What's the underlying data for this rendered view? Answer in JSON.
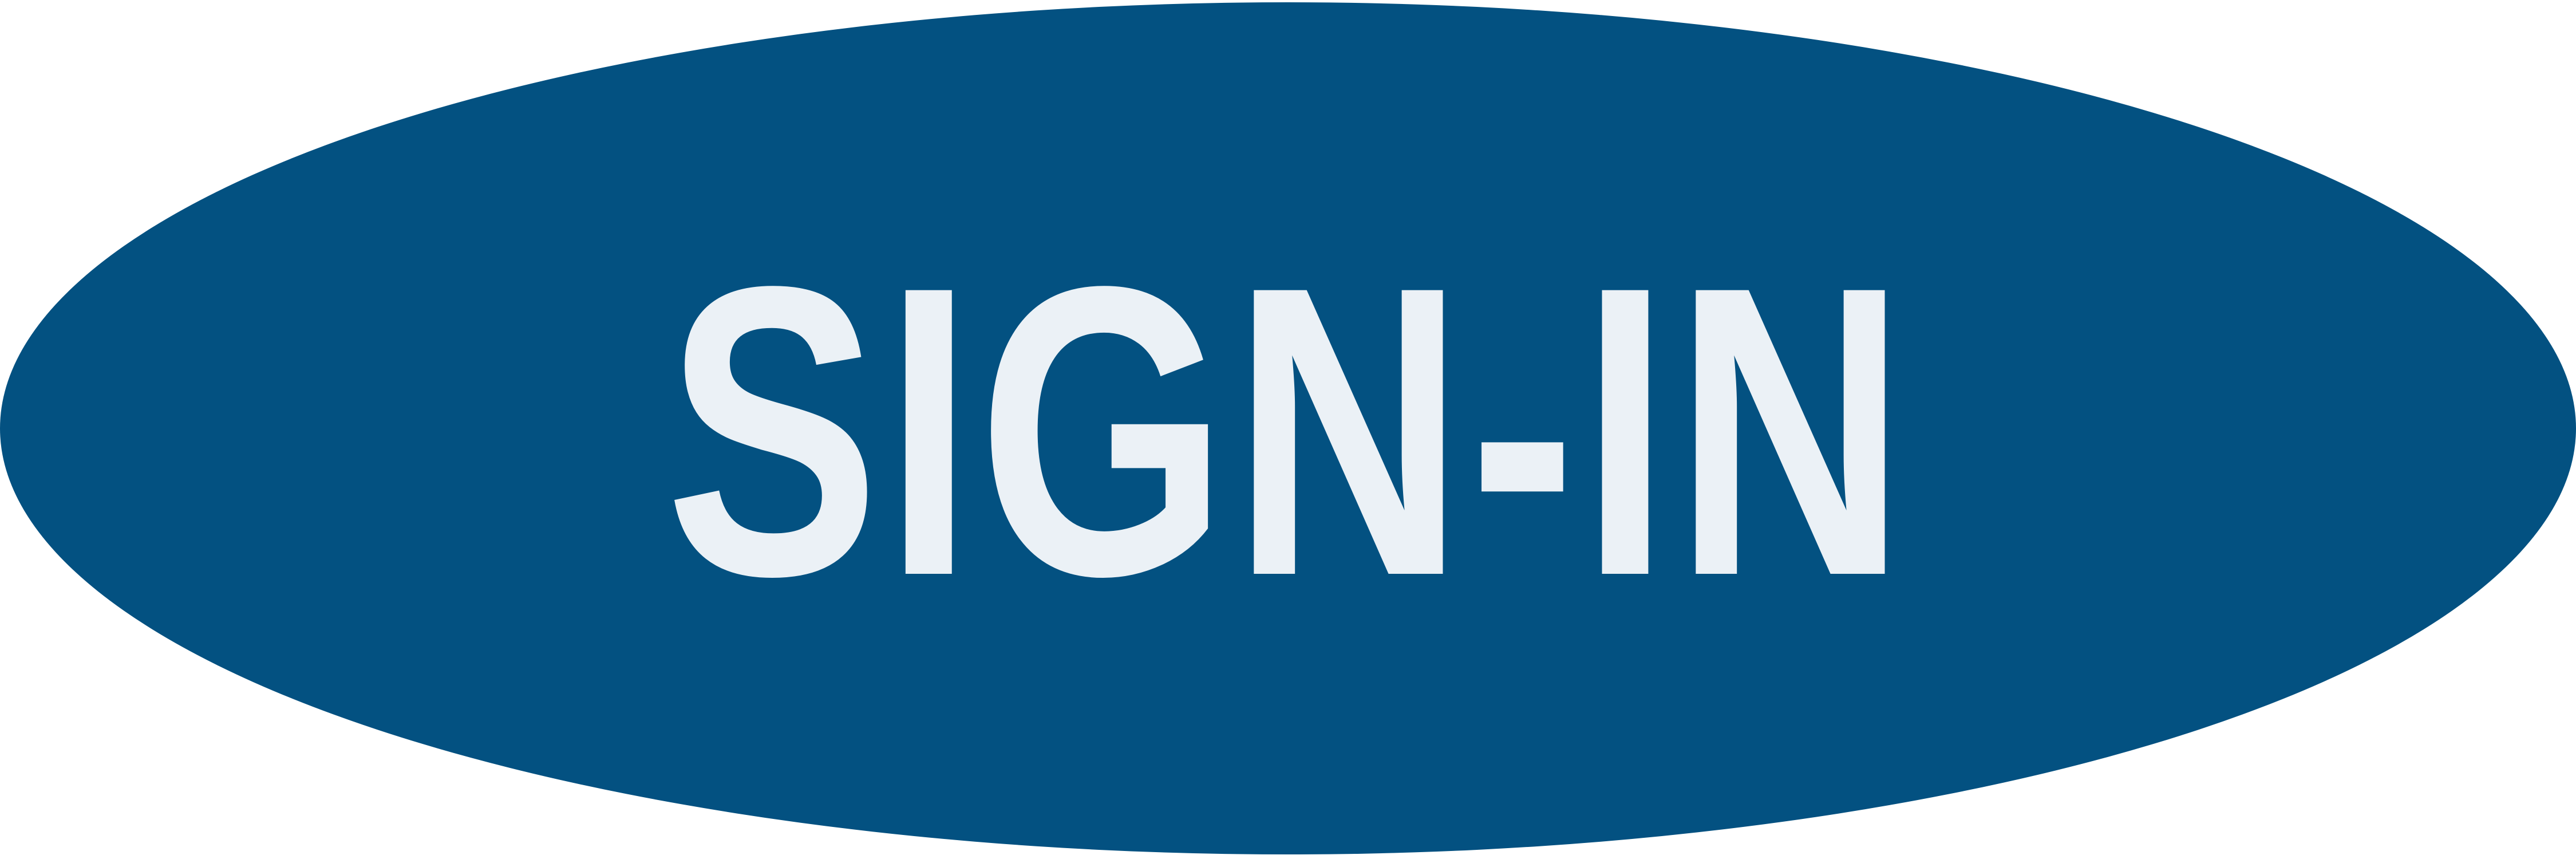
{
  "button": {
    "label": "SIGN-IN",
    "background_color": "#035181",
    "text_color": "#EBF1F6"
  }
}
